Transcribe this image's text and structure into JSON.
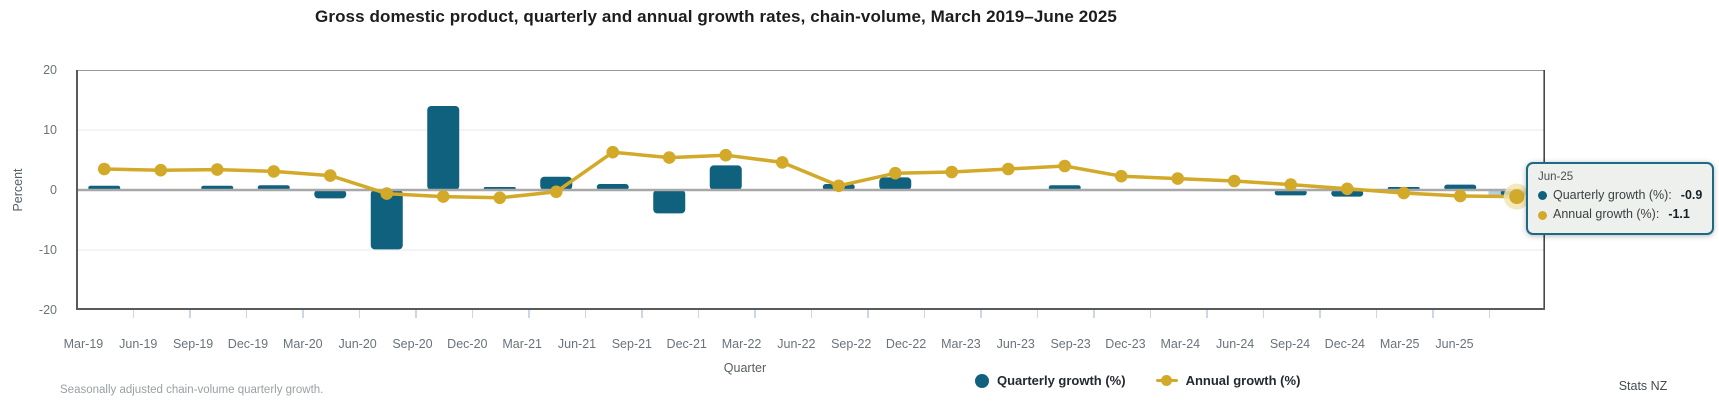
{
  "title": "Gross domestic product, quarterly and annual growth rates, chain-volume, March 2019–June 2025",
  "axes": {
    "y_label": "Percent",
    "x_label": "Quarter",
    "y_ticks": [
      20,
      10,
      0,
      -10,
      -20
    ]
  },
  "chart_data": {
    "type": "bar",
    "subtype": "bar+line combo",
    "categories": [
      "Mar-19",
      "Jun-19",
      "Sep-19",
      "Dec-19",
      "Mar-20",
      "Jun-20",
      "Sep-20",
      "Dec-20",
      "Mar-21",
      "Jun-21",
      "Sep-21",
      "Dec-21",
      "Mar-22",
      "Jun-22",
      "Sep-22",
      "Dec-22",
      "Mar-23",
      "Jun-23",
      "Sep-23",
      "Dec-23",
      "Mar-24",
      "Jun-24",
      "Sep-24",
      "Dec-24",
      "Mar-25",
      "Jun-25"
    ],
    "series": [
      {
        "name": "Quarterly growth (%)",
        "type": "bar",
        "color": "#10617d",
        "values": [
          0.7,
          0.1,
          0.7,
          0.8,
          -1.4,
          -9.9,
          14.0,
          0.5,
          2.2,
          1.0,
          -3.9,
          4.1,
          0.0,
          1.0,
          2.1,
          0.0,
          0.0,
          0.8,
          -0.1,
          -0.1,
          0.1,
          -0.9,
          -1.1,
          0.5,
          0.9,
          -0.9
        ]
      },
      {
        "name": "Annual growth (%)",
        "type": "line",
        "color": "#d3a929",
        "values": [
          3.5,
          3.3,
          3.4,
          3.1,
          2.4,
          -0.6,
          -1.1,
          -1.3,
          -0.3,
          6.3,
          5.4,
          5.8,
          4.6,
          0.7,
          2.8,
          3.0,
          3.5,
          4.0,
          2.3,
          1.9,
          1.5,
          0.9,
          0.2,
          -0.5,
          -1.0,
          -1.1
        ]
      }
    ],
    "title": "Gross domestic product, quarterly and annual growth rates, chain-volume, March 2019–June 2025",
    "xlabel": "Quarter",
    "ylabel": "Percent",
    "ylim": [
      -20,
      20
    ],
    "grid": "horizontal",
    "legend_position": "bottom",
    "highlight_index": 25
  },
  "legend": {
    "items": [
      {
        "label": "Quarterly growth (%)",
        "color": "#10617d",
        "marker": "circle"
      },
      {
        "label": "Annual growth (%)",
        "color": "#d3a929",
        "marker": "line-dot"
      }
    ]
  },
  "tooltip": {
    "title": "Jun-25",
    "rows": [
      {
        "label": "Quarterly growth (%):",
        "value": "-0.9",
        "color": "#10617d"
      },
      {
        "label": "Annual growth (%):",
        "value": "-1.1",
        "color": "#d3a929"
      }
    ]
  },
  "footnote": "Seasonally adjusted chain-volume quarterly growth.",
  "source": "Stats NZ",
  "colors": {
    "bar": "#10617d",
    "line": "#d3a929",
    "zero_line": "#a8a8a8",
    "grid": "#eeeeee",
    "frame": "#5a5a5a",
    "frame_top": "#999999",
    "halo": "#f1e4b3",
    "tick": "#ccd6ea"
  }
}
